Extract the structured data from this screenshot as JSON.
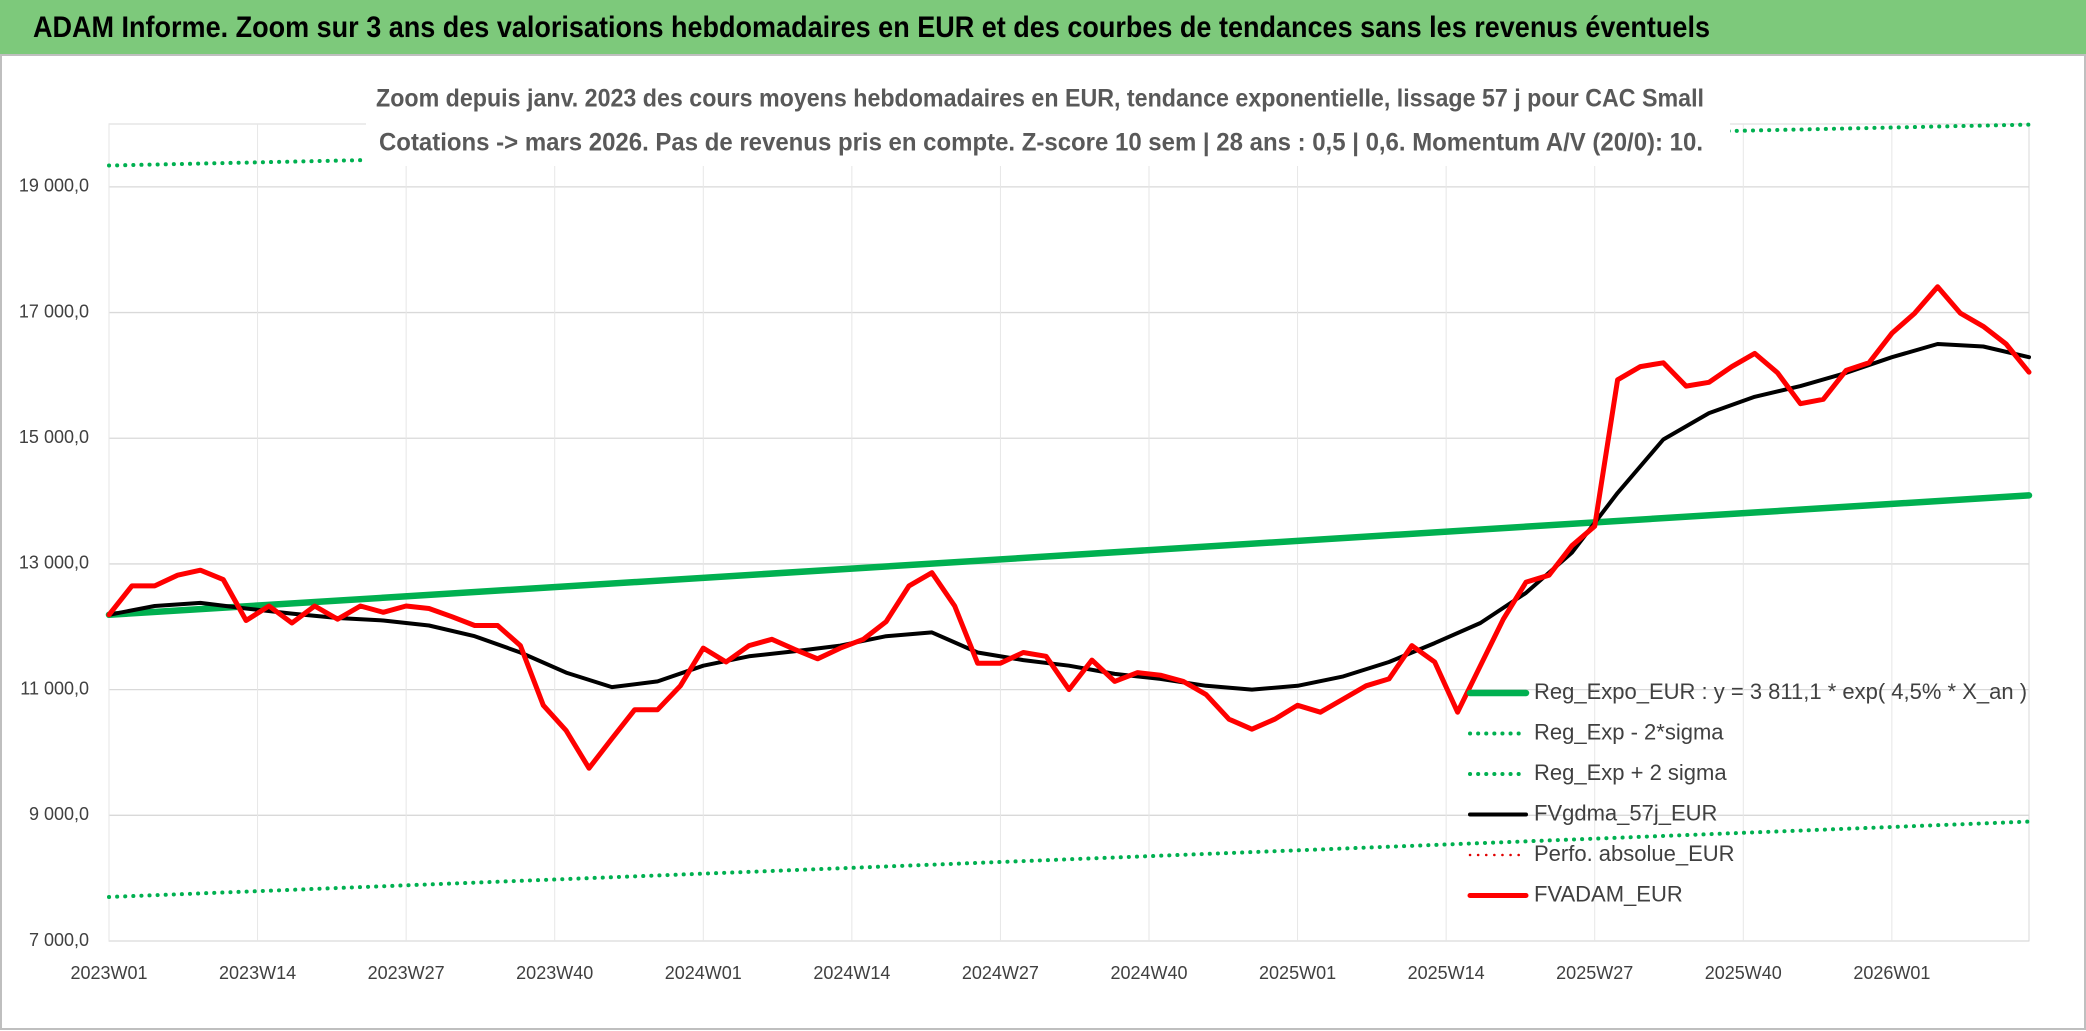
{
  "header": {
    "title": "ADAM Informe. Zoom sur 3 ans des valorisations hebdomadaires en EUR et des courbes de tendances sans les revenus éventuels"
  },
  "chart_data": {
    "type": "line",
    "title": "Zoom depuis janv. 2023 des cours moyens hebdomadaires en EUR, tendance exponentielle, lissage 57 j pour CAC Small",
    "subtitle": "Cotations -> mars 2026. Pas de revenus pris en compte. Z-score 10 sem | 28 ans : 0,5 | 0,6. Momentum A/V (20/0): 10.",
    "xlim": [
      0,
      168
    ],
    "xticks": [
      {
        "value": 0,
        "label": "2023W01"
      },
      {
        "value": 13,
        "label": "2023W14"
      },
      {
        "value": 26,
        "label": "2023W27"
      },
      {
        "value": 39,
        "label": "2023W40"
      },
      {
        "value": 52,
        "label": "2024W01"
      },
      {
        "value": 65,
        "label": "2024W14"
      },
      {
        "value": 78,
        "label": "2024W27"
      },
      {
        "value": 91,
        "label": "2024W40"
      },
      {
        "value": 104,
        "label": "2025W01"
      },
      {
        "value": 117,
        "label": "2025W14"
      },
      {
        "value": 130,
        "label": "2025W27"
      },
      {
        "value": 143,
        "label": "2025W40"
      },
      {
        "value": 156,
        "label": "2026W01"
      }
    ],
    "ylim": [
      7000,
      20000
    ],
    "yticks": [
      {
        "value": 7000,
        "label": "7 000,0"
      },
      {
        "value": 9000,
        "label": "9 000,0"
      },
      {
        "value": 11000,
        "label": "11 000,0"
      },
      {
        "value": 13000,
        "label": "13 000,0"
      },
      {
        "value": 15000,
        "label": "15 000,0"
      },
      {
        "value": 17000,
        "label": "17 000,0"
      },
      {
        "value": 19000,
        "label": "19 000,0"
      }
    ],
    "grid": true,
    "legend": "bottom-right",
    "series": [
      {
        "name": "Reg_Expo_EUR : y = 3 811,1 * exp( 4,5% *  X_an )",
        "color": "#00b050",
        "style": "solid",
        "x": [
          0,
          168
        ],
        "values": [
          12190,
          14090
        ]
      },
      {
        "name": "Reg_Exp - 2*sigma",
        "color": "#00b050",
        "style": "dotted",
        "x": [
          0,
          168
        ],
        "values": [
          7700,
          8900
        ]
      },
      {
        "name": "Reg_Exp + 2 sigma",
        "color": "#00b050",
        "style": "dotted",
        "x": [
          0,
          168
        ],
        "values": [
          19340,
          19990
        ]
      },
      {
        "name": "FVgdma_57j_EUR",
        "color": "#000000",
        "style": "solid",
        "x": [
          0,
          4,
          8,
          12,
          16,
          20,
          24,
          28,
          32,
          36,
          40,
          44,
          48,
          52,
          56,
          60,
          64,
          68,
          72,
          76,
          80,
          84,
          88,
          92,
          96,
          100,
          104,
          108,
          112,
          116,
          120,
          124,
          128,
          132,
          136,
          140,
          144,
          148,
          152,
          156,
          160,
          164,
          168
        ],
        "values": [
          12190,
          12330,
          12380,
          12290,
          12210,
          12140,
          12100,
          12020,
          11850,
          11590,
          11270,
          11040,
          11130,
          11380,
          11530,
          11610,
          11700,
          11850,
          11910,
          11590,
          11470,
          11380,
          11250,
          11170,
          11060,
          11000,
          11060,
          11210,
          11440,
          11740,
          12060,
          12540,
          13180,
          14130,
          14980,
          15400,
          15660,
          15830,
          16040,
          16290,
          16500,
          16460,
          16290
        ]
      },
      {
        "name": "Perfo. absolue_EUR",
        "color": "#e00000",
        "style": "dotted",
        "x": [],
        "values": []
      },
      {
        "name": "FVADAM_EUR",
        "color": "#ff0000",
        "style": "solid",
        "x": [
          0,
          2,
          4,
          6,
          8,
          10,
          12,
          14,
          16,
          18,
          20,
          22,
          24,
          26,
          28,
          30,
          32,
          34,
          36,
          38,
          40,
          42,
          44,
          46,
          48,
          50,
          52,
          54,
          56,
          58,
          60,
          62,
          64,
          66,
          68,
          70,
          72,
          74,
          76,
          78,
          80,
          82,
          84,
          86,
          88,
          90,
          92,
          94,
          96,
          98,
          100,
          102,
          104,
          106,
          108,
          110,
          112,
          114,
          116,
          118,
          120,
          122,
          124,
          126,
          128,
          130,
          132,
          134,
          136,
          138,
          140,
          142,
          144,
          146,
          148,
          150,
          152,
          154,
          156,
          158,
          160,
          162,
          164,
          166,
          168
        ],
        "values": [
          12190,
          12650,
          12650,
          12820,
          12900,
          12750,
          12100,
          12330,
          12060,
          12330,
          12120,
          12330,
          12230,
          12330,
          12290,
          12160,
          12020,
          12020,
          11700,
          10750,
          10350,
          9750,
          10220,
          10680,
          10680,
          11060,
          11660,
          11440,
          11700,
          11800,
          11640,
          11490,
          11660,
          11800,
          12080,
          12650,
          12860,
          12330,
          11420,
          11420,
          11590,
          11530,
          11000,
          11470,
          11130,
          11270,
          11230,
          11130,
          10920,
          10530,
          10370,
          10530,
          10750,
          10640,
          10850,
          11060,
          11170,
          11700,
          11440,
          10640,
          11380,
          12120,
          12710,
          12820,
          13290,
          13600,
          15930,
          16140,
          16200,
          15830,
          15890,
          16140,
          16350,
          16040,
          15550,
          15620,
          16080,
          16200,
          16670,
          16990,
          17410,
          16990,
          16780,
          16500,
          16050
        ]
      }
    ]
  }
}
